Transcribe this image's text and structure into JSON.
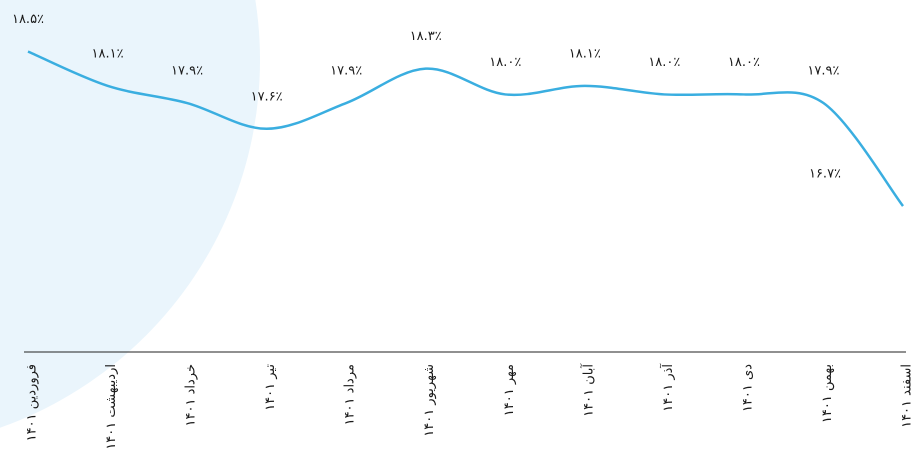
{
  "chart_data": {
    "type": "line",
    "categories": [
      "فروردین ۱۴۰۱",
      "اردیبهشت ۱۴۰۱",
      "خرداد ۱۴۰۱",
      "تیر ۱۴۰۱",
      "مرداد ۱۴۰۱",
      "شهریور ۱۴۰۱",
      "مهر ۱۴۰۱",
      "آبان ۱۴۰۱",
      "آذر ۱۴۰۱",
      "دی ۱۴۰۱",
      "بهمن ۱۴۰۱",
      "اسفند ۱۴۰۱"
    ],
    "values": [
      18.5,
      18.1,
      17.9,
      17.6,
      17.9,
      18.3,
      18.0,
      18.1,
      18.0,
      18.0,
      17.9,
      16.7
    ],
    "value_labels": [
      "۱۸.۵٪",
      "۱۸.۱٪",
      "۱۷.۹٪",
      "۱۷.۶٪",
      "۱۷.۹٪",
      "۱۸.۳٪",
      "۱۸.۰٪",
      "۱۸.۱٪",
      "۱۸.۰٪",
      "۱۸.۰٪",
      "۱۷.۹٪",
      "۱۶.۷٪"
    ],
    "color": "#3aaee0",
    "ylim": [
      15,
      19.1
    ]
  }
}
